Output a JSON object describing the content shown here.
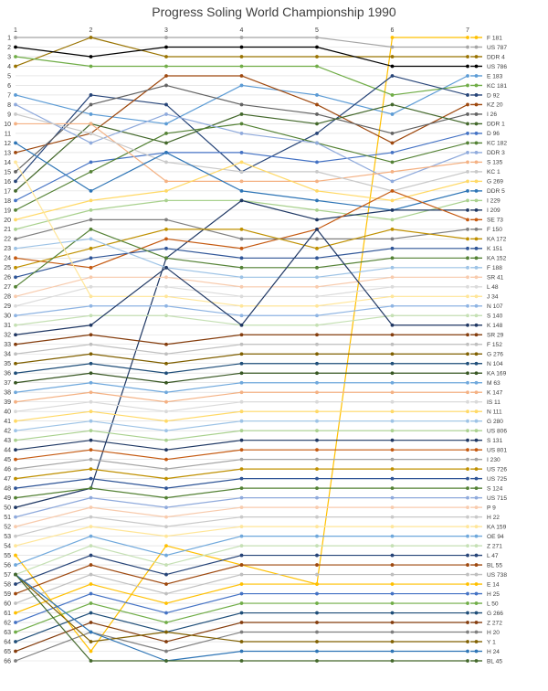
{
  "chart_data": {
    "type": "line",
    "title": "Progress Soling World Championship 1990",
    "xlabel": "",
    "ylabel": "",
    "x": [
      1,
      2,
      3,
      4,
      5,
      6,
      7
    ],
    "ylim": [
      1,
      66
    ],
    "y_inverted": true,
    "grid": "horizontal",
    "legend_position": "right",
    "series": [
      {
        "name": "F 181",
        "color": "#ffc000",
        "values": [
          55,
          65,
          54,
          56,
          58,
          1,
          1
        ]
      },
      {
        "name": "US 787",
        "color": "#a5a5a5",
        "values": [
          1,
          1,
          1,
          1,
          1,
          2,
          2
        ]
      },
      {
        "name": "DDR 4",
        "color": "#997300",
        "values": [
          4,
          1,
          3,
          3,
          3,
          3,
          3
        ]
      },
      {
        "name": "US 786",
        "color": "#000000",
        "values": [
          2,
          3,
          2,
          2,
          2,
          4,
          4
        ]
      },
      {
        "name": "E 183",
        "color": "#5b9bd5",
        "values": [
          7,
          9,
          10,
          6,
          7,
          9,
          5
        ]
      },
      {
        "name": "KC 181",
        "color": "#70ad47",
        "values": [
          3,
          4,
          4,
          4,
          4,
          7,
          6
        ]
      },
      {
        "name": "D 92",
        "color": "#264478",
        "values": [
          16,
          7,
          8,
          15,
          11,
          5,
          7
        ]
      },
      {
        "name": "KZ 20",
        "color": "#9e480e",
        "values": [
          13,
          11,
          5,
          5,
          8,
          12,
          8
        ]
      },
      {
        "name": "I 26",
        "color": "#636363",
        "values": [
          15,
          8,
          6,
          8,
          9,
          11,
          9
        ]
      },
      {
        "name": "DDR 1",
        "color": "#43682b",
        "values": [
          17,
          10,
          12,
          9,
          10,
          8,
          10
        ]
      },
      {
        "name": "D 96",
        "color": "#4472c4",
        "values": [
          18,
          14,
          13,
          13,
          14,
          13,
          11
        ]
      },
      {
        "name": "KC 182",
        "color": "#548235",
        "values": [
          19,
          15,
          11,
          10,
          12,
          14,
          12
        ]
      },
      {
        "name": "DDR 3",
        "color": "#8faadc",
        "values": [
          8,
          12,
          9,
          11,
          12,
          16,
          13
        ]
      },
      {
        "name": "S 135",
        "color": "#f4b183",
        "values": [
          10,
          10,
          16,
          16,
          16,
          15,
          14
        ]
      },
      {
        "name": "KC 1",
        "color": "#c9c9c9",
        "values": [
          9,
          11,
          14,
          15,
          15,
          17,
          15
        ]
      },
      {
        "name": "G 269",
        "color": "#ffd966",
        "values": [
          20,
          18,
          17,
          14,
          17,
          18,
          16
        ]
      },
      {
        "name": "DDR 5",
        "color": "#2e75b6",
        "values": [
          12,
          17,
          13,
          17,
          18,
          19,
          17
        ]
      },
      {
        "name": "I 229",
        "color": "#a9d18e",
        "values": [
          21,
          19,
          18,
          18,
          19,
          20,
          18
        ]
      },
      {
        "name": "I 209",
        "color": "#1f3864",
        "values": [
          50,
          48,
          24,
          18,
          20,
          19,
          19
        ]
      },
      {
        "name": "SE 73",
        "color": "#c55a11",
        "values": [
          24,
          25,
          22,
          23,
          21,
          17,
          20
        ]
      },
      {
        "name": "F 150",
        "color": "#7f7f7f",
        "values": [
          22,
          20,
          20,
          22,
          22,
          22,
          21
        ]
      },
      {
        "name": "KA 172",
        "color": "#bf9000",
        "values": [
          25,
          23,
          21,
          21,
          23,
          21,
          22
        ]
      },
      {
        "name": "K 151",
        "color": "#2f5597",
        "values": [
          26,
          24,
          23,
          24,
          24,
          23,
          23
        ]
      },
      {
        "name": "KA 152",
        "color": "#548235",
        "values": [
          27,
          21,
          24,
          25,
          25,
          24,
          24
        ]
      },
      {
        "name": "F 188",
        "color": "#9dc3e6",
        "values": [
          23,
          22,
          25,
          26,
          26,
          25,
          25
        ]
      },
      {
        "name": "SR 41",
        "color": "#f8cbad",
        "values": [
          28,
          26,
          26,
          27,
          27,
          26,
          26
        ]
      },
      {
        "name": "L 48",
        "color": "#dbdbdb",
        "values": [
          29,
          27,
          27,
          28,
          28,
          27,
          27
        ]
      },
      {
        "name": "J 34",
        "color": "#ffe699",
        "values": [
          14,
          28,
          28,
          29,
          29,
          28,
          28
        ]
      },
      {
        "name": "N 107",
        "color": "#8eb4e3",
        "values": [
          30,
          29,
          29,
          30,
          30,
          29,
          29
        ]
      },
      {
        "name": "S 140",
        "color": "#c5e0b4",
        "values": [
          31,
          30,
          30,
          31,
          31,
          30,
          30
        ]
      },
      {
        "name": "K 148",
        "color": "#203864",
        "values": [
          32,
          31,
          25,
          31,
          21,
          31,
          31
        ]
      },
      {
        "name": "SR 29",
        "color": "#843c0c",
        "values": [
          33,
          32,
          33,
          32,
          32,
          32,
          32
        ]
      },
      {
        "name": "F 152",
        "color": "#bfbfbf",
        "values": [
          34,
          33,
          34,
          33,
          33,
          33,
          33
        ]
      },
      {
        "name": "G 276",
        "color": "#806000",
        "values": [
          35,
          34,
          35,
          34,
          34,
          34,
          34
        ]
      },
      {
        "name": "N 104",
        "color": "#1f4e79",
        "values": [
          36,
          35,
          36,
          35,
          35,
          35,
          35
        ]
      },
      {
        "name": "KA 169",
        "color": "#385723",
        "values": [
          37,
          36,
          37,
          36,
          36,
          36,
          36
        ]
      },
      {
        "name": "M 63",
        "color": "#6fa8dc",
        "values": [
          38,
          37,
          38,
          37,
          37,
          37,
          37
        ]
      },
      {
        "name": "K 147",
        "color": "#f4b183",
        "values": [
          39,
          38,
          39,
          38,
          38,
          38,
          38
        ]
      },
      {
        "name": "IS 11",
        "color": "#d9d9d9",
        "values": [
          40,
          39,
          40,
          39,
          39,
          39,
          39
        ]
      },
      {
        "name": "N 111",
        "color": "#ffd966",
        "values": [
          41,
          40,
          41,
          40,
          40,
          40,
          40
        ]
      },
      {
        "name": "G 280",
        "color": "#9dc3e6",
        "values": [
          42,
          41,
          42,
          41,
          41,
          41,
          41
        ]
      },
      {
        "name": "US 806",
        "color": "#a9d18e",
        "values": [
          43,
          42,
          43,
          42,
          42,
          42,
          42
        ]
      },
      {
        "name": "S 131",
        "color": "#1f3864",
        "values": [
          44,
          43,
          44,
          43,
          43,
          43,
          43
        ]
      },
      {
        "name": "US 801",
        "color": "#c55a11",
        "values": [
          45,
          44,
          45,
          44,
          44,
          44,
          44
        ]
      },
      {
        "name": "I 230",
        "color": "#a5a5a5",
        "values": [
          46,
          45,
          46,
          45,
          45,
          45,
          45
        ]
      },
      {
        "name": "US 726",
        "color": "#bf9000",
        "values": [
          47,
          46,
          47,
          46,
          46,
          46,
          46
        ]
      },
      {
        "name": "US 725",
        "color": "#2f5597",
        "values": [
          48,
          47,
          48,
          47,
          47,
          47,
          47
        ]
      },
      {
        "name": "S 124",
        "color": "#548235",
        "values": [
          49,
          48,
          49,
          48,
          48,
          48,
          48
        ]
      },
      {
        "name": "US 715",
        "color": "#8faadc",
        "values": [
          51,
          49,
          50,
          49,
          49,
          49,
          49
        ]
      },
      {
        "name": "P 9",
        "color": "#f8cbad",
        "values": [
          52,
          50,
          51,
          50,
          50,
          50,
          50
        ]
      },
      {
        "name": "H 22",
        "color": "#c9c9c9",
        "values": [
          53,
          51,
          52,
          51,
          51,
          51,
          51
        ]
      },
      {
        "name": "KA 159",
        "color": "#ffe699",
        "values": [
          54,
          52,
          53,
          52,
          52,
          52,
          52
        ]
      },
      {
        "name": "OE 94",
        "color": "#6fa8dc",
        "values": [
          56,
          53,
          55,
          53,
          53,
          53,
          53
        ]
      },
      {
        "name": "Z 271",
        "color": "#c5e0b4",
        "values": [
          57,
          54,
          56,
          54,
          54,
          54,
          54
        ]
      },
      {
        "name": "L 47",
        "color": "#264478",
        "values": [
          58,
          55,
          57,
          55,
          55,
          55,
          55
        ]
      },
      {
        "name": "BL 55",
        "color": "#9e480e",
        "values": [
          59,
          56,
          58,
          56,
          56,
          56,
          56
        ]
      },
      {
        "name": "US 738",
        "color": "#bfbfbf",
        "values": [
          60,
          57,
          59,
          57,
          57,
          57,
          57
        ]
      },
      {
        "name": "E 14",
        "color": "#ffc000",
        "values": [
          61,
          58,
          60,
          58,
          58,
          58,
          58
        ]
      },
      {
        "name": "H 25",
        "color": "#4472c4",
        "values": [
          62,
          59,
          61,
          59,
          59,
          59,
          59
        ]
      },
      {
        "name": "L 50",
        "color": "#70ad47",
        "values": [
          63,
          60,
          62,
          60,
          60,
          60,
          60
        ]
      },
      {
        "name": "G 266",
        "color": "#1f4e79",
        "values": [
          64,
          61,
          63,
          61,
          61,
          61,
          61
        ]
      },
      {
        "name": "Z 272",
        "color": "#843c0c",
        "values": [
          65,
          62,
          64,
          62,
          62,
          62,
          62
        ]
      },
      {
        "name": "H 20",
        "color": "#7f7f7f",
        "values": [
          66,
          63,
          65,
          63,
          63,
          63,
          63
        ]
      },
      {
        "name": "Y 1",
        "color": "#806000",
        "values": [
          57,
          64,
          63,
          64,
          64,
          64,
          64
        ]
      },
      {
        "name": "H 24",
        "color": "#2e75b6",
        "values": [
          57,
          63,
          66,
          65,
          65,
          65,
          65
        ]
      },
      {
        "name": "BL 45",
        "color": "#43682b",
        "values": [
          57,
          66,
          66,
          66,
          66,
          66,
          66
        ]
      }
    ]
  }
}
